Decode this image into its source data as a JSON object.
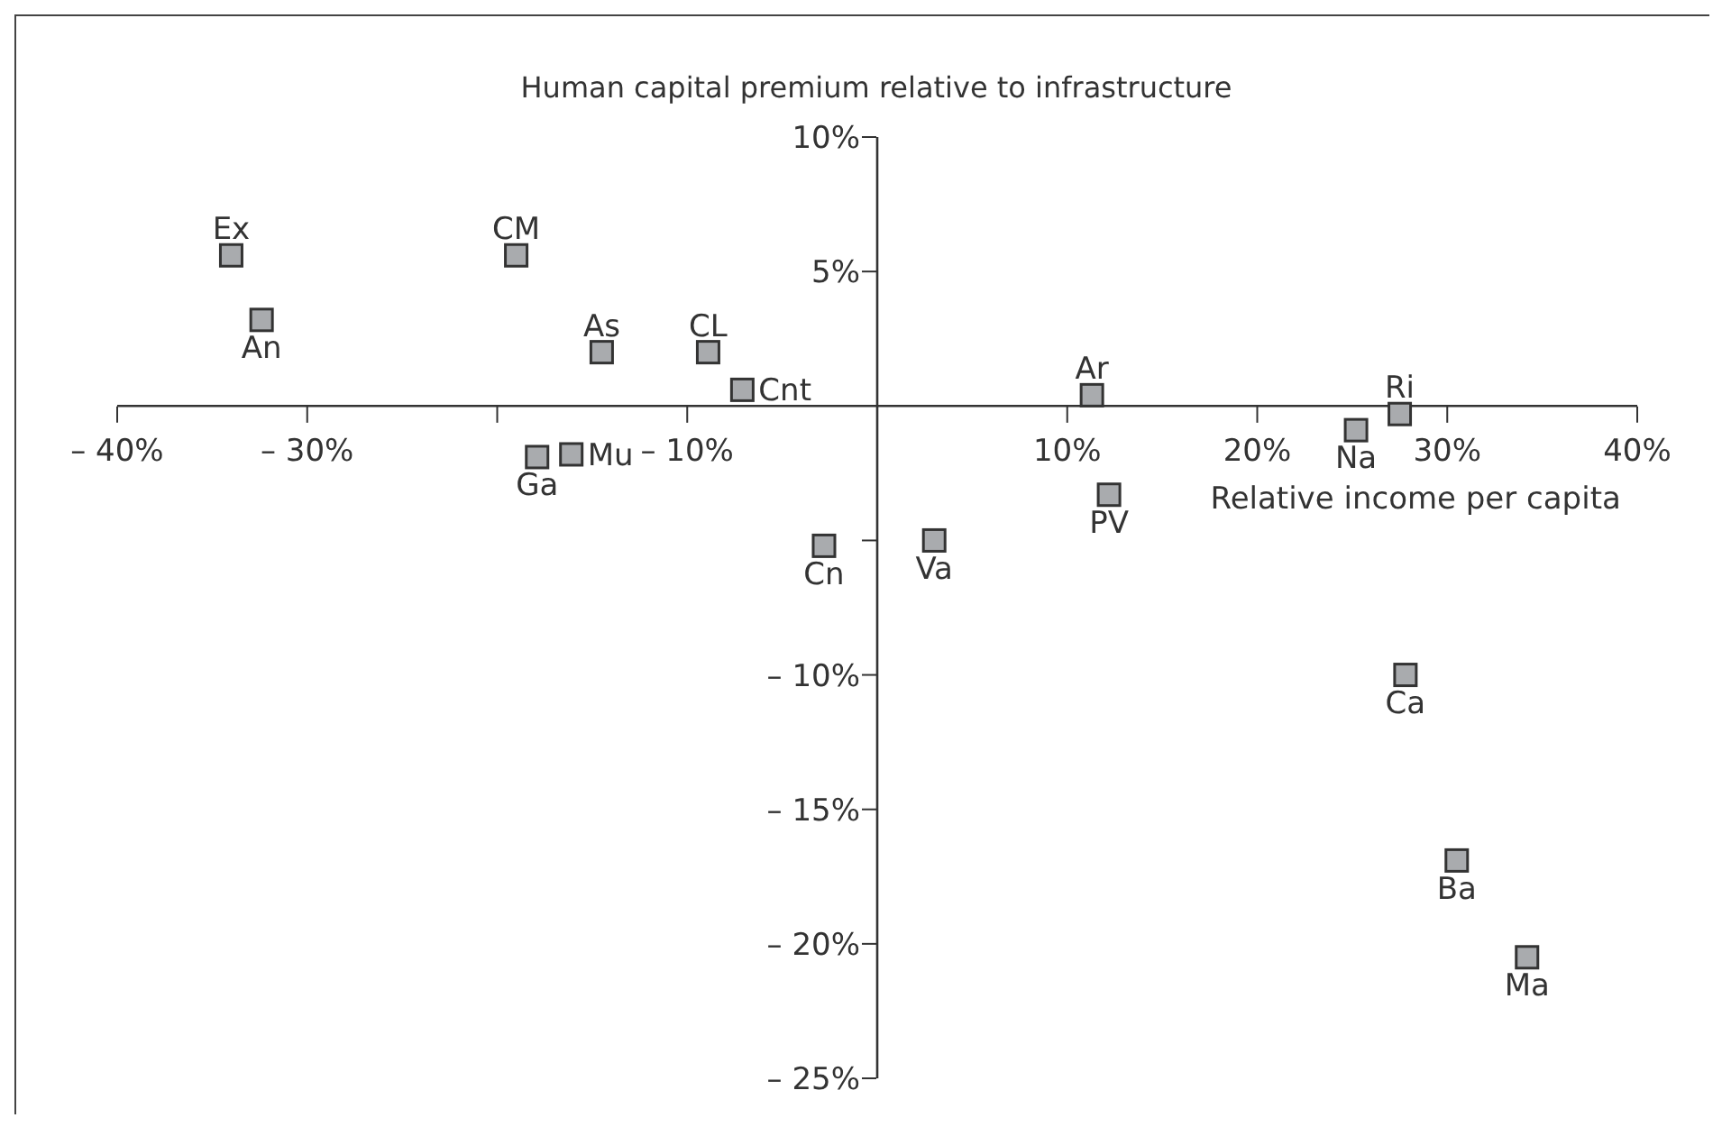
{
  "chart_data": {
    "type": "scatter",
    "xlabel": "Relative income per capita",
    "ylabel": "Human capital premium relative to infrastructure",
    "x": [
      -34,
      -32.4,
      -19,
      -14.5,
      -8.9,
      -7.1,
      -17.9,
      -16.1,
      -2.8,
      3,
      11.3,
      12.2,
      25.2,
      27.5,
      27.8,
      30.5,
      34.2
    ],
    "series": [
      {
        "color": "#a9abae",
        "values": [
          5.6,
          3.2,
          5.6,
          2,
          2,
          0.6,
          -1.9,
          -1.8,
          -5.2,
          -5,
          0.4,
          -3.3,
          -0.9,
          -0.3,
          -10,
          -16.9,
          -20.5
        ]
      }
    ],
    "marker": "square",
    "xlim": [
      -40,
      40
    ],
    "ylim": [
      -25,
      10
    ],
    "xticks": [
      {
        "value": -40,
        "label": "– 40%"
      },
      {
        "value": -30,
        "label": "– 30%"
      },
      {
        "value": -20,
        "label": null
      },
      {
        "value": -10,
        "label": "– 10%"
      },
      {
        "value": 10,
        "label": "10%"
      },
      {
        "value": 20,
        "label": "20%"
      },
      {
        "value": 30,
        "label": "30%"
      },
      {
        "value": 40,
        "label": "40%"
      }
    ],
    "yticks": [
      {
        "value": 10,
        "label": "10%"
      },
      {
        "value": 5,
        "label": "5%"
      },
      {
        "value": -5,
        "label": null
      },
      {
        "value": -10,
        "label": "– 10%"
      },
      {
        "value": -15,
        "label": "– 15%"
      },
      {
        "value": -20,
        "label": "– 20%"
      },
      {
        "value": -25,
        "label": "– 25%"
      }
    ],
    "annotations": [
      {
        "text": "Ex",
        "x": -34,
        "y": 5.6
      },
      {
        "text": "An",
        "x": -32.4,
        "y": 3.2
      },
      {
        "text": "CM",
        "x": -19,
        "y": 5.6
      },
      {
        "text": "As",
        "x": -14.5,
        "y": 2
      },
      {
        "text": "CL",
        "x": -8.9,
        "y": 2
      },
      {
        "text": "Cnt",
        "x": -7.1,
        "y": 0.6
      },
      {
        "text": "Ga",
        "x": -17.9,
        "y": -1.9
      },
      {
        "text": "Mu",
        "x": -16.1,
        "y": -1.8
      },
      {
        "text": "Cn",
        "x": -2.8,
        "y": -5.2
      },
      {
        "text": "Va",
        "x": 3,
        "y": -5
      },
      {
        "text": "Ar",
        "x": 11.3,
        "y": 0.4
      },
      {
        "text": "PV",
        "x": 12.2,
        "y": -3.3
      },
      {
        "text": "Na",
        "x": 25.2,
        "y": -0.9
      },
      {
        "text": "Ri",
        "x": 27.5,
        "y": -0.3
      },
      {
        "text": "Ca",
        "x": 27.8,
        "y": -10
      },
      {
        "text": "Ba",
        "x": 30.5,
        "y": -16.9
      },
      {
        "text": "Ma",
        "x": 34.2,
        "y": -20.5
      }
    ]
  }
}
